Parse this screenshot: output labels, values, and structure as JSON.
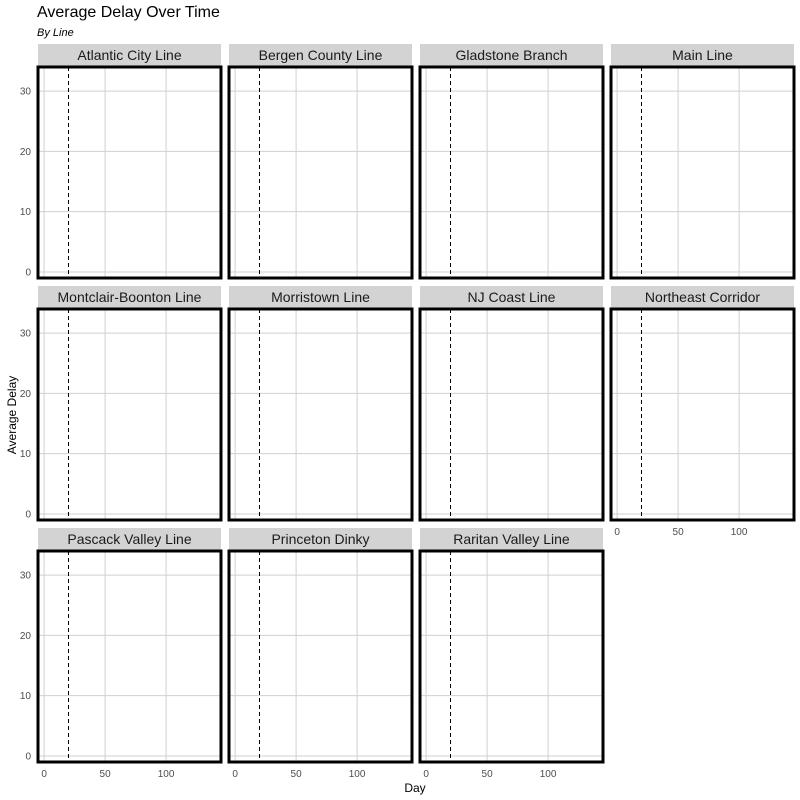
{
  "chart_data": {
    "type": "line",
    "title": "Average Delay Over Time",
    "subtitle": "By Line",
    "xlabel": "Day",
    "ylabel": "Average Delay",
    "xlim": [
      -5,
      145
    ],
    "ylim": [
      -1,
      34
    ],
    "x_ticks": [
      0,
      50,
      100
    ],
    "y_ticks": [
      0,
      10,
      20,
      30
    ],
    "grid": true,
    "reference_line": {
      "x": 20,
      "style": "dashed"
    },
    "facets": [
      "Atlantic City Line",
      "Bergen County Line",
      "Gladstone Branch",
      "Main Line",
      "Montclair-Boonton Line",
      "Morristown Line",
      "NJ Coast Line",
      "Northeast Corridor",
      "Pascack Valley Line",
      "Princeton Dinky",
      "Raritan Valley Line"
    ],
    "series": []
  }
}
